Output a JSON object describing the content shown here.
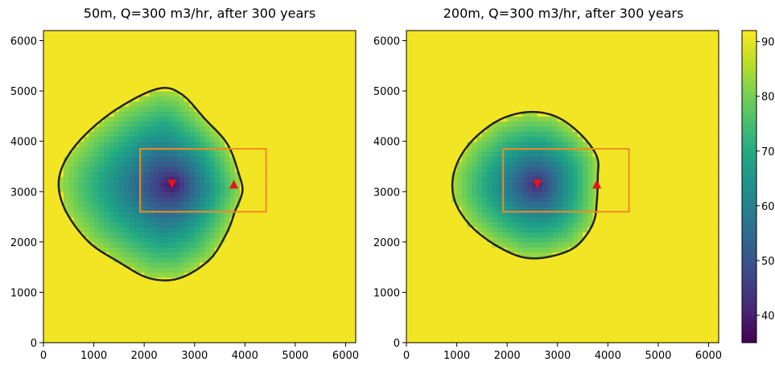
{
  "chart_data": [
    {
      "type": "heatmap",
      "title": "50m, Q=300 m3/hr, after 300 years",
      "xlim": [
        0,
        6200
      ],
      "ylim": [
        0,
        6200
      ],
      "x_ticks": [
        0,
        1000,
        2000,
        3000,
        4000,
        5000,
        6000
      ],
      "y_ticks": [
        0,
        1000,
        2000,
        3000,
        4000,
        5000,
        6000
      ],
      "field": {
        "background_value": 91,
        "min_value": 36,
        "center": [
          2550,
          3150
        ],
        "outer_edge_value": 84
      },
      "contour": {
        "color": "#222222",
        "points": [
          [
            2300,
            5050
          ],
          [
            2750,
            4930
          ],
          [
            3200,
            4450
          ],
          [
            3650,
            3950
          ],
          [
            3880,
            3350
          ],
          [
            3950,
            3000
          ],
          [
            3800,
            2600
          ],
          [
            3650,
            2200
          ],
          [
            3300,
            1650
          ],
          [
            2700,
            1280
          ],
          [
            2100,
            1280
          ],
          [
            1500,
            1600
          ],
          [
            900,
            2000
          ],
          [
            450,
            2600
          ],
          [
            300,
            3150
          ],
          [
            450,
            3650
          ],
          [
            900,
            4200
          ],
          [
            1550,
            4700
          ]
        ]
      },
      "rectangle": {
        "x": [
          1920,
          4420
        ],
        "y": [
          2600,
          3850
        ],
        "color": "#f08a24"
      },
      "markers": [
        {
          "shape": "triangle-down",
          "x": 2550,
          "y": 3150,
          "color": "#e8141a"
        },
        {
          "shape": "triangle-up",
          "x": 3780,
          "y": 3150,
          "color": "#e8141a"
        }
      ]
    },
    {
      "type": "heatmap",
      "title": "200m, Q=300 m3/hr, after 300 years",
      "xlim": [
        0,
        6200
      ],
      "ylim": [
        0,
        6200
      ],
      "x_ticks": [
        0,
        1000,
        2000,
        3000,
        4000,
        5000,
        6000
      ],
      "y_ticks": [
        0,
        1000,
        2000,
        3000,
        4000,
        5000,
        6000
      ],
      "field": {
        "background_value": 91,
        "min_value": 40,
        "center": [
          2600,
          3150
        ],
        "outer_edge_value": 84
      },
      "contour": {
        "color": "#222222",
        "points": [
          [
            2400,
            4580
          ],
          [
            2950,
            4500
          ],
          [
            3450,
            4150
          ],
          [
            3780,
            3700
          ],
          [
            3800,
            3300
          ],
          [
            3780,
            2800
          ],
          [
            3700,
            2350
          ],
          [
            3350,
            1900
          ],
          [
            2800,
            1700
          ],
          [
            2300,
            1700
          ],
          [
            1750,
            1950
          ],
          [
            1250,
            2350
          ],
          [
            950,
            2850
          ],
          [
            950,
            3400
          ],
          [
            1250,
            3950
          ],
          [
            1800,
            4400
          ]
        ]
      },
      "rectangle": {
        "x": [
          1920,
          4420
        ],
        "y": [
          2600,
          3850
        ],
        "color": "#f08a24"
      },
      "markers": [
        {
          "shape": "triangle-down",
          "x": 2600,
          "y": 3150,
          "color": "#e8141a"
        },
        {
          "shape": "triangle-up",
          "x": 3780,
          "y": 3150,
          "color": "#e8141a"
        }
      ]
    }
  ],
  "colorbar": {
    "min": 35,
    "max": 92,
    "ticks": [
      40,
      50,
      60,
      70,
      80,
      90
    ],
    "tick_labels": [
      "40",
      "50",
      "60",
      "70",
      "80",
      "90"
    ],
    "colormap": "viridis"
  }
}
